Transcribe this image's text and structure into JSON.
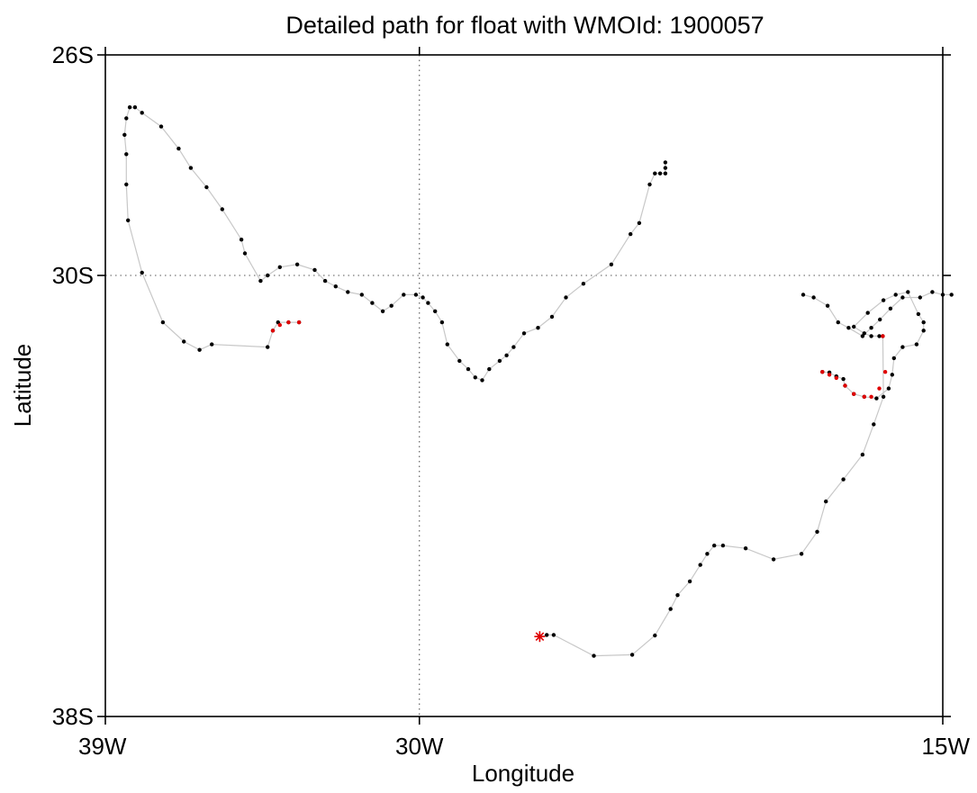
{
  "chart_data": {
    "type": "scatter",
    "title": "Detailed path for float with WMOId: 1900057",
    "xlabel": "Longitude",
    "ylabel": "Latitude",
    "xlim": [
      -39,
      -15
    ],
    "ylim": [
      -38,
      -26
    ],
    "x_ticks": [
      -39,
      -30,
      -15
    ],
    "x_tick_labels": [
      "39W",
      "30W",
      "15W"
    ],
    "y_ticks": [
      -26,
      -30,
      -38
    ],
    "y_tick_labels": [
      "26S",
      "30S",
      "38S"
    ],
    "grid": "dotted lines at 30W and 30S",
    "colors": {
      "track": "#c8c8c8",
      "point": "#000000",
      "highlight": "#e00000",
      "frame": "#000000"
    },
    "start_marker": {
      "lon": -26.55,
      "lat": -36.55,
      "symbol": "asterisk",
      "color": "#e00000"
    },
    "track": [
      [
        -26.55,
        -36.55
      ],
      [
        -26.35,
        -36.52
      ],
      [
        -26.15,
        -36.52
      ],
      [
        -25.0,
        -36.9
      ],
      [
        -23.9,
        -36.88
      ],
      [
        -23.25,
        -36.53
      ],
      [
        -22.8,
        -36.05
      ],
      [
        -22.6,
        -35.8
      ],
      [
        -22.25,
        -35.55
      ],
      [
        -21.95,
        -35.25
      ],
      [
        -21.75,
        -35.05
      ],
      [
        -21.55,
        -34.9
      ],
      [
        -21.3,
        -34.9
      ],
      [
        -20.65,
        -34.95
      ],
      [
        -19.85,
        -35.15
      ],
      [
        -19.05,
        -35.05
      ],
      [
        -18.6,
        -34.65
      ],
      [
        -18.35,
        -34.1
      ],
      [
        -17.85,
        -33.7
      ],
      [
        -17.3,
        -33.25
      ],
      [
        -16.98,
        -32.7
      ],
      [
        -16.7,
        -32.2
      ],
      [
        -16.72,
        -31.1
      ],
      [
        -16.82,
        -31.1
      ],
      [
        -17.05,
        -31.1
      ],
      [
        -17.25,
        -31.05
      ],
      [
        -17.55,
        -30.93
      ],
      [
        -17.15,
        -30.68
      ],
      [
        -16.7,
        -30.45
      ],
      [
        -16.35,
        -30.35
      ],
      [
        -16.0,
        -30.3
      ],
      [
        -15.7,
        -30.7
      ],
      [
        -15.55,
        -30.85
      ],
      [
        -15.55,
        -31.0
      ],
      [
        -15.75,
        -31.25
      ],
      [
        -16.15,
        -31.3
      ],
      [
        -16.4,
        -31.5
      ],
      [
        -16.45,
        -31.8
      ],
      [
        -16.55,
        -32.05
      ],
      [
        -16.9,
        -32.23
      ],
      [
        -17.25,
        -32.2
      ],
      [
        -17.55,
        -32.15
      ],
      [
        -17.8,
        -32.0
      ],
      [
        -17.85,
        -31.88
      ],
      [
        -18.05,
        -31.83
      ],
      [
        -18.25,
        -31.76
      ],
      [
        -18.45,
        -31.75
      ]
    ],
    "track_highlight": [
      [
        -16.72,
        -31.1
      ],
      [
        -16.65,
        -31.75
      ],
      [
        -16.82,
        -32.05
      ],
      [
        -17.05,
        -32.2
      ],
      [
        -17.25,
        -32.2
      ],
      [
        -17.55,
        -32.15
      ],
      [
        -17.8,
        -32.0
      ],
      [
        -18.05,
        -31.86
      ],
      [
        -18.25,
        -31.8
      ],
      [
        -18.45,
        -31.75
      ]
    ],
    "track_west": [
      [
        -19.0,
        -30.35
      ],
      [
        -18.7,
        -30.4
      ],
      [
        -18.3,
        -30.55
      ],
      [
        -18.0,
        -30.85
      ],
      [
        -17.7,
        -30.95
      ],
      [
        -17.3,
        -31.1
      ],
      [
        -17.05,
        -30.95
      ],
      [
        -16.8,
        -30.8
      ],
      [
        -16.5,
        -30.6
      ],
      [
        -16.15,
        -30.4
      ],
      [
        -15.65,
        -30.4
      ],
      [
        -15.3,
        -30.3
      ],
      [
        -15.0,
        -30.35
      ],
      [
        -14.75,
        -30.35
      ]
    ],
    "path": [
      [
        -22.95,
        -27.95
      ],
      [
        -22.95,
        -28.05
      ],
      [
        -22.95,
        -28.15
      ],
      [
        -23.1,
        -28.15
      ],
      [
        -23.25,
        -28.15
      ],
      [
        -23.4,
        -28.35
      ],
      [
        -23.7,
        -29.05
      ],
      [
        -23.95,
        -29.25
      ],
      [
        -24.5,
        -29.8
      ],
      [
        -25.3,
        -30.15
      ],
      [
        -25.8,
        -30.4
      ],
      [
        -26.2,
        -30.75
      ],
      [
        -26.6,
        -30.95
      ],
      [
        -27.0,
        -31.05
      ],
      [
        -27.3,
        -31.3
      ],
      [
        -27.5,
        -31.45
      ],
      [
        -27.7,
        -31.55
      ],
      [
        -28.0,
        -31.7
      ],
      [
        -28.2,
        -31.9
      ],
      [
        -28.4,
        -31.85
      ],
      [
        -28.6,
        -31.7
      ],
      [
        -28.85,
        -31.55
      ],
      [
        -29.2,
        -31.25
      ],
      [
        -29.35,
        -30.85
      ],
      [
        -29.55,
        -30.65
      ],
      [
        -29.75,
        -30.5
      ],
      [
        -29.9,
        -30.4
      ],
      [
        -30.1,
        -30.35
      ],
      [
        -30.45,
        -30.35
      ],
      [
        -30.8,
        -30.55
      ],
      [
        -31.05,
        -30.65
      ],
      [
        -31.35,
        -30.5
      ],
      [
        -31.65,
        -30.35
      ],
      [
        -32.05,
        -30.3
      ],
      [
        -32.4,
        -30.2
      ],
      [
        -32.7,
        -30.1
      ],
      [
        -33.0,
        -29.9
      ],
      [
        -33.5,
        -29.8
      ],
      [
        -34.0,
        -29.85
      ],
      [
        -34.35,
        -30.0
      ],
      [
        -34.55,
        -30.1
      ],
      [
        -35.0,
        -29.6
      ],
      [
        -35.1,
        -29.35
      ],
      [
        -35.65,
        -28.8
      ],
      [
        -36.1,
        -28.4
      ],
      [
        -36.55,
        -28.05
      ],
      [
        -36.9,
        -27.7
      ],
      [
        -37.4,
        -27.3
      ],
      [
        -37.95,
        -27.05
      ],
      [
        -38.15,
        -26.95
      ],
      [
        -38.3,
        -26.95
      ],
      [
        -38.4,
        -27.15
      ],
      [
        -38.45,
        -27.45
      ],
      [
        -38.4,
        -27.8
      ],
      [
        -38.4,
        -28.35
      ],
      [
        -38.35,
        -29.0
      ],
      [
        -37.95,
        -29.95
      ],
      [
        -37.35,
        -30.85
      ],
      [
        -36.75,
        -31.2
      ],
      [
        -36.3,
        -31.35
      ],
      [
        -35.95,
        -31.25
      ],
      [
        -34.35,
        -31.3
      ],
      [
        -34.2,
        -31.0
      ],
      [
        -34.05,
        -30.85
      ],
      [
        -33.75,
        -30.85
      ],
      [
        -33.45,
        -30.85
      ]
    ],
    "path_highlight": [
      [
        -34.2,
        -31.0
      ],
      [
        -34.0,
        -30.9
      ],
      [
        -33.75,
        -30.85
      ],
      [
        -33.45,
        -30.85
      ]
    ]
  }
}
